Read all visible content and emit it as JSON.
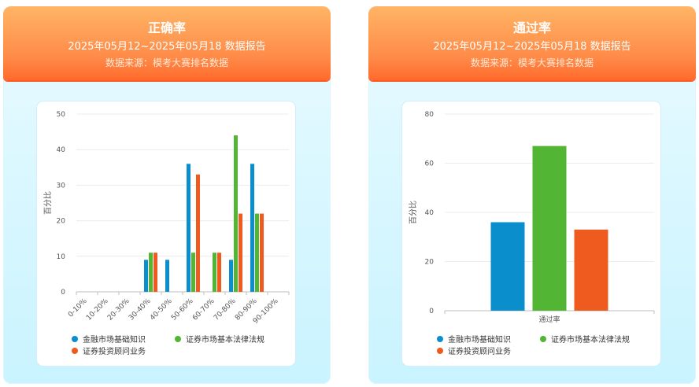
{
  "colors": {
    "blue": "#0a8ecc",
    "green": "#52b533",
    "orange": "#ef5a1f"
  },
  "panels": [
    {
      "title": "正确率",
      "subtitle": "2025年05月12~2025年05月18 数据报告",
      "source": "数据来源：模考大赛排名数据"
    },
    {
      "title": "通过率",
      "subtitle": "2025年05月12~2025年05月18 数据报告",
      "source": "数据来源：模考大赛排名数据"
    }
  ],
  "chart_data": [
    {
      "type": "bar",
      "ylabel": "百分比",
      "ylim": [
        0,
        50
      ],
      "yticks": [
        0,
        10,
        20,
        30,
        40,
        50
      ],
      "categories": [
        "0-10%",
        "10-20%",
        "20-30%",
        "30-40%",
        "40-50%",
        "50-60%",
        "60-70%",
        "70-80%",
        "80-90%",
        "90-100%"
      ],
      "series": [
        {
          "name": "金融市场基础知识",
          "color": "#0a8ecc",
          "values": [
            0,
            0,
            0,
            9,
            9,
            36,
            0,
            9,
            36,
            0
          ]
        },
        {
          "name": "证券市场基本法律法规",
          "color": "#52b533",
          "values": [
            0,
            0,
            0,
            11,
            0,
            11,
            11,
            44,
            22,
            0
          ]
        },
        {
          "name": "证券投资顾问业务",
          "color": "#ef5a1f",
          "values": [
            0,
            0,
            0,
            11,
            0,
            33,
            11,
            22,
            22,
            0
          ]
        }
      ],
      "legend": "bottom",
      "grid": true
    },
    {
      "type": "bar",
      "ylabel": "百分比",
      "ylim": [
        0,
        80
      ],
      "yticks": [
        0,
        20,
        40,
        60,
        80
      ],
      "categories": [
        "通过率"
      ],
      "series": [
        {
          "name": "金融市场基础知识",
          "color": "#0a8ecc",
          "values": [
            36
          ]
        },
        {
          "name": "证券市场基本法律法规",
          "color": "#52b533",
          "values": [
            67
          ]
        },
        {
          "name": "证券投资顾问业务",
          "color": "#ef5a1f",
          "values": [
            33
          ]
        }
      ],
      "legend": "bottom",
      "grid": true
    }
  ]
}
